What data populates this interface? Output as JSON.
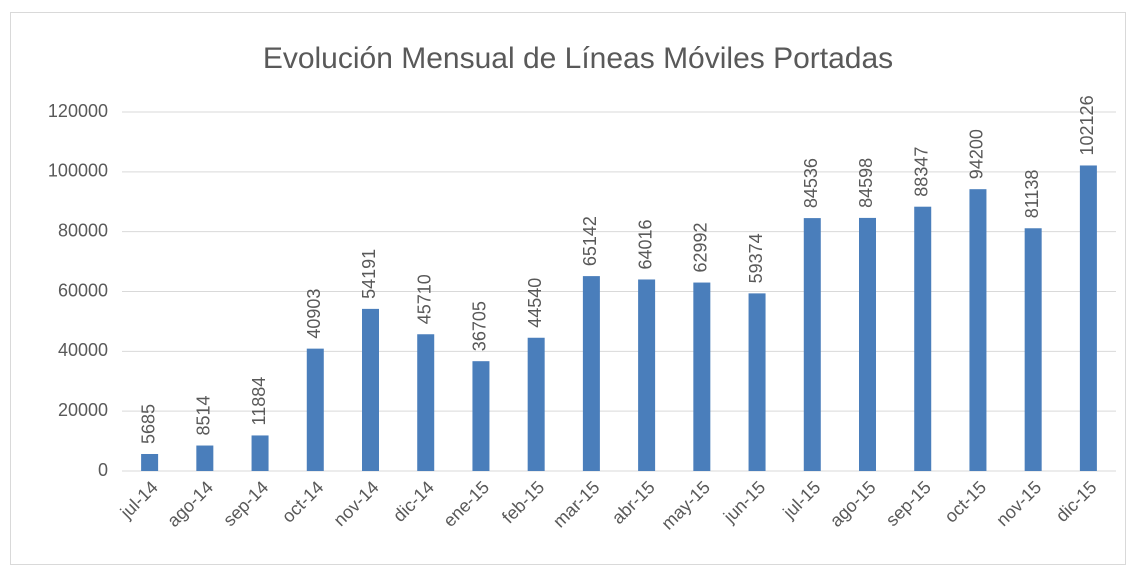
{
  "chart_data": {
    "type": "bar",
    "title": "Evolución Mensual de Líneas Móviles Portadas",
    "categories": [
      "jul-14",
      "ago-14",
      "sep-14",
      "oct-14",
      "nov-14",
      "dic-14",
      "ene-15",
      "feb-15",
      "mar-15",
      "abr-15",
      "may-15",
      "jun-15",
      "jul-15",
      "ago-15",
      "sep-15",
      "oct-15",
      "nov-15",
      "dic-15"
    ],
    "values": [
      5685,
      8514,
      11884,
      40903,
      54191,
      45710,
      36705,
      44540,
      65142,
      64016,
      62992,
      59374,
      84536,
      84598,
      88347,
      94200,
      81138,
      102126
    ],
    "color": "#4a7ebb",
    "ylim": [
      0,
      120000
    ],
    "yticks": [
      0,
      20000,
      40000,
      60000,
      80000,
      100000,
      120000
    ],
    "grid": true
  }
}
